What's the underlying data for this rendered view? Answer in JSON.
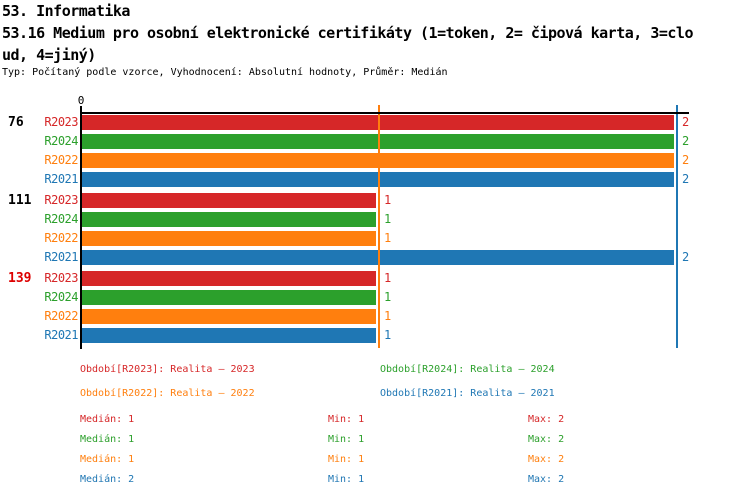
{
  "title": {
    "line1": "53. Informatika",
    "line2": "53.16 Medium pro osobní elektronické certifikáty (1=token, 2= čipová karta, 3=clo",
    "line3": "ud, 4=jiný)",
    "subtitle": "Typ: Počítaný podle vzorce, Vyhodnocení: Absolutní hodnoty, Průměr: Medián"
  },
  "chart_data": {
    "type": "bar",
    "orientation": "horizontal",
    "x_axis": {
      "min": 0,
      "max": 2,
      "tick_label": "0"
    },
    "series_order": [
      "R2023",
      "R2024",
      "R2022",
      "R2021"
    ],
    "groups": [
      {
        "label": "76",
        "label_color": "#000000",
        "values": [
          2,
          2,
          2,
          2
        ]
      },
      {
        "label": "111",
        "label_color": "#000000",
        "values": [
          1,
          1,
          1,
          2
        ]
      },
      {
        "label": "139",
        "label_color": "#dd0000",
        "values": [
          1,
          1,
          1,
          1
        ]
      }
    ],
    "series_meta": [
      {
        "name": "R2023",
        "color": "#d62728",
        "legend": "Období[R2023]: Realita – 2023",
        "median": 1,
        "min": 1,
        "max": 2
      },
      {
        "name": "R2024",
        "color": "#2ca02c",
        "legend": "Období[R2024]: Realita – 2024",
        "median": 1,
        "min": 1,
        "max": 2
      },
      {
        "name": "R2022",
        "color": "#ff7f0e",
        "legend": "Období[R2022]: Realita – 2022",
        "median": 1,
        "min": 1,
        "max": 2
      },
      {
        "name": "R2021",
        "color": "#1f77b4",
        "legend": "Období[R2021]: Realita – 2021",
        "median": 2,
        "min": 1,
        "max": 2
      }
    ],
    "stats_labels": {
      "median": "Medián",
      "min": "Min",
      "max": "Max"
    },
    "legend_position": "bottom",
    "grid": false
  }
}
